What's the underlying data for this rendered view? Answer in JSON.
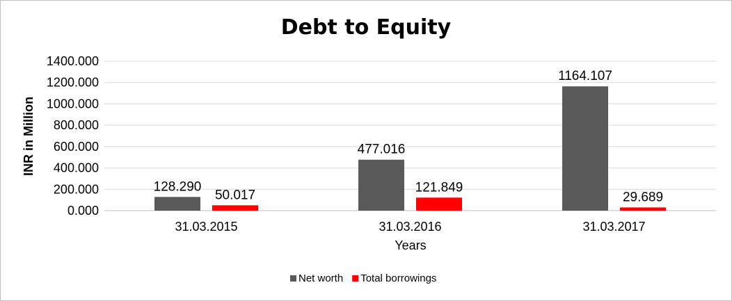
{
  "chart_data": {
    "type": "bar",
    "title": "Debt to Equity",
    "xlabel": "Years",
    "ylabel": "INR in Million",
    "categories": [
      "31.03.2015",
      "31.03.2016",
      "31.03.2017"
    ],
    "series": [
      {
        "name": "Net worth",
        "values": [
          128.29,
          477.016,
          1164.107
        ],
        "labels": [
          "128.290",
          "477.016",
          "1164.107"
        ],
        "color": "#595959"
      },
      {
        "name": "Total borrowings",
        "values": [
          50.017,
          121.849,
          29.689
        ],
        "labels": [
          "50.017",
          "121.849",
          "29.689"
        ],
        "color": "#ff0000"
      }
    ],
    "ylim": [
      0,
      1400
    ],
    "yticks": [
      "0.000",
      "200.000",
      "400.000",
      "600.000",
      "800.000",
      "1000.000",
      "1200.000",
      "1400.000"
    ],
    "grid": true,
    "legend": "bottom"
  }
}
